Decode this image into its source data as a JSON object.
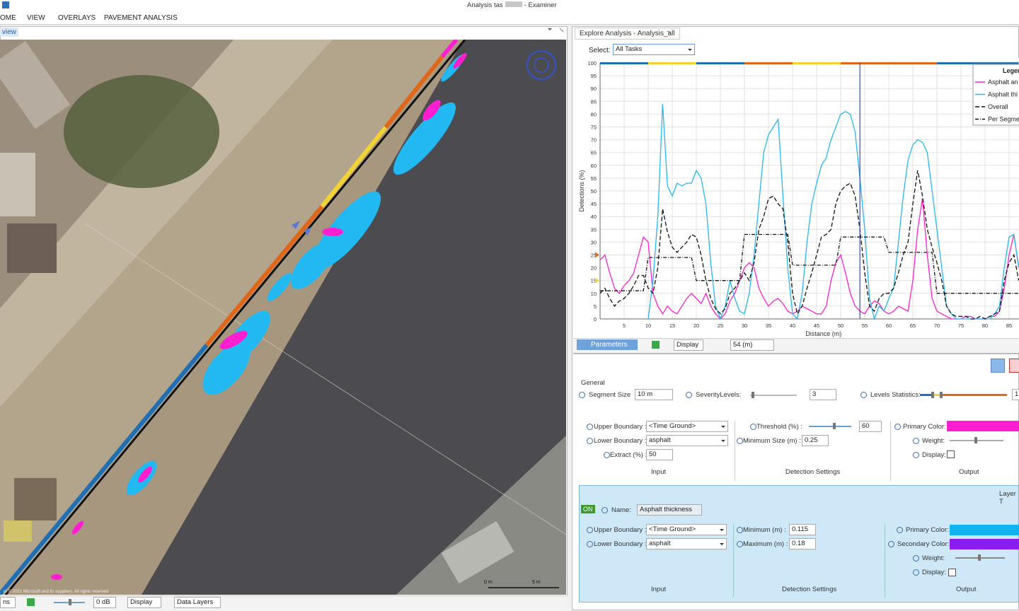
{
  "app": {
    "title_left": "Analysis tas",
    "title_right": "- Examiner",
    "menu": [
      "OME",
      "VIEW",
      "OVERLAYS",
      "PAVEMENT ANALYSIS"
    ]
  },
  "map_pane": {
    "tab": "view",
    "copyright": "nt © 2021 Microsoft and its suppliers. All rights reserved",
    "scale_start": "0 m",
    "scale_end": "5 m",
    "status": {
      "left": "ns",
      "gain": "0 dB",
      "display": "Display",
      "data_layers": "Data Layers"
    }
  },
  "analysis_pane": {
    "tab": "Explore Analysis - Analysis_all",
    "select_label": "Select:",
    "select_value": "All Tasks",
    "toolbar": {
      "parameters": "Parameters",
      "display": "Display",
      "position": "54 (m)"
    },
    "general": {
      "title": "General",
      "segment_size_label": "Segment Size",
      "segment_size": "10 m",
      "severity_label": "SeverityLevels:",
      "severity": "3",
      "levels_label": "Levels Statistics:",
      "levels_value": "1"
    },
    "layer1": {
      "upper_label": "Upper Boundary :",
      "upper": "<Time Ground>",
      "lower_label": "Lower Boundary :",
      "lower": "asphalt",
      "extract_label": "Extract (%) :",
      "extract": "50",
      "input": "Input",
      "threshold_label": "Threshold (%) :",
      "threshold": "60",
      "min_size_label": "Minimum Size (m) :",
      "min_size": "0.25",
      "detection": "Detection Settings",
      "primary_label": "Primary Color:",
      "weight_label": "Weight:",
      "display_label": "Display:",
      "output": "Output"
    },
    "layer2": {
      "header": "Layer T",
      "on": "ON",
      "name_label": "Name:",
      "name": "Asphalt thickness",
      "upper_label": "Upper Boundary :",
      "upper": "<Time Ground>",
      "lower_label": "Lower Boundary :",
      "lower": "asphalt",
      "input": "Input",
      "min_label": "Minimum (m) :",
      "min": "0.115",
      "max_label": "Maximum (m) :",
      "max": "0.18",
      "detection": "Detection Settings",
      "primary_label": "Primary Color:",
      "secondary_label": "Secondary Color:",
      "weight_label": "Weight:",
      "display_label": "Display:",
      "output": "Output"
    }
  },
  "chart_data": {
    "type": "line",
    "y_label": "Detections (%)",
    "x_label": "Distance (m)",
    "legend_title": "Legen",
    "legend_position": "upper right",
    "grid": true,
    "xlim": [
      0,
      87
    ],
    "ylim": [
      0,
      100
    ],
    "xticks": [
      5,
      10,
      15,
      20,
      25,
      30,
      35,
      40,
      45,
      50,
      55,
      60,
      65,
      70,
      75,
      80,
      85
    ],
    "yticks": [
      0,
      5,
      10,
      15,
      20,
      25,
      30,
      35,
      40,
      45,
      50,
      55,
      60,
      65,
      70,
      75,
      80,
      85,
      90,
      95,
      100
    ],
    "cursor_x": 54,
    "cursor_color": "#2f4fc4",
    "segment_bounds": [
      0,
      10,
      20,
      30,
      40,
      50,
      70,
      87
    ],
    "segment_colors": [
      "#1f6fb5",
      "#f2d335",
      "#1f6fb5",
      "#e0661a",
      "#f2d335",
      "#e0661a",
      "#1f6fb5"
    ],
    "threshold_markers": [
      {
        "value": 25,
        "color": "#e0661a"
      },
      {
        "value": 15,
        "color": "#f2d335"
      }
    ],
    "x": [
      0,
      1,
      2,
      3,
      4,
      5,
      6,
      7,
      8,
      9,
      10,
      11,
      12,
      13,
      14,
      15,
      16,
      17,
      18,
      19,
      20,
      21,
      22,
      23,
      24,
      25,
      26,
      27,
      28,
      29,
      30,
      31,
      32,
      33,
      34,
      35,
      36,
      37,
      38,
      39,
      40,
      41,
      42,
      43,
      44,
      45,
      46,
      47,
      48,
      49,
      50,
      51,
      52,
      53,
      54,
      55,
      56,
      57,
      58,
      59,
      60,
      61,
      62,
      63,
      64,
      65,
      66,
      67,
      68,
      69,
      70,
      71,
      72,
      73,
      74,
      75,
      76,
      77,
      78,
      79,
      80,
      81,
      82,
      83,
      84,
      85,
      86,
      87
    ],
    "series": [
      {
        "name": "Asphalt an",
        "color": "#ff1fd0",
        "dash": "none",
        "values": [
          23,
          25,
          18,
          12,
          10,
          13,
          15,
          18,
          25,
          32,
          30,
          10,
          5,
          2,
          5,
          3,
          2,
          5,
          8,
          10,
          8,
          6,
          10,
          5,
          2,
          0,
          2,
          7,
          10,
          15,
          20,
          22,
          20,
          12,
          8,
          5,
          7,
          8,
          6,
          3,
          2,
          3,
          5,
          4,
          3,
          2,
          2,
          5,
          15,
          22,
          25,
          18,
          10,
          5,
          3,
          2,
          5,
          7,
          6,
          3,
          2,
          3,
          5,
          4,
          3,
          15,
          35,
          47,
          25,
          8,
          3,
          2,
          1,
          0,
          0,
          0,
          1,
          1,
          0,
          0,
          0,
          1,
          1,
          3,
          12,
          25,
          33,
          20
        ]
      },
      {
        "name": "Asphalt thi",
        "color": "#27b7f0",
        "dash": "none",
        "values": [
          null,
          null,
          null,
          null,
          null,
          null,
          null,
          null,
          null,
          null,
          0,
          15,
          40,
          84,
          52,
          48,
          53,
          52,
          53,
          53,
          58,
          55,
          45,
          22,
          5,
          0,
          5,
          15,
          8,
          3,
          2,
          10,
          25,
          45,
          65,
          72,
          75,
          78,
          48,
          20,
          2,
          0,
          10,
          30,
          45,
          53,
          60,
          63,
          70,
          75,
          80,
          81,
          80,
          73,
          55,
          35,
          8,
          0,
          5,
          3,
          8,
          12,
          30,
          48,
          62,
          68,
          70,
          69,
          65,
          50,
          35,
          20,
          5,
          2,
          0,
          0,
          0,
          0,
          0,
          0,
          0,
          0,
          2,
          5,
          20,
          32,
          33,
          20
        ]
      },
      {
        "name": "Overall",
        "color": "#111111",
        "dash": "6,3",
        "values": [
          10,
          12,
          8,
          5,
          7,
          8,
          10,
          13,
          17,
          17,
          12,
          10,
          20,
          43,
          34,
          28,
          26,
          28,
          30,
          33,
          32,
          25,
          15,
          8,
          4,
          2,
          4,
          10,
          12,
          15,
          18,
          15,
          22,
          35,
          40,
          47,
          48,
          45,
          43,
          30,
          10,
          2,
          5,
          12,
          18,
          25,
          32,
          33,
          35,
          45,
          50,
          52,
          53,
          48,
          35,
          18,
          5,
          3,
          8,
          10,
          10,
          12,
          18,
          25,
          30,
          45,
          58,
          48,
          35,
          28,
          22,
          15,
          5,
          2,
          1,
          1,
          1,
          0,
          0,
          1,
          0,
          1,
          2,
          3,
          15,
          22,
          25,
          15
        ]
      },
      {
        "name": "Per Segme",
        "color": "#111111",
        "dash": "5,2,1,2",
        "values": [
          11,
          11,
          11,
          11,
          11,
          11,
          11,
          11,
          11,
          11,
          24,
          24,
          24,
          24,
          24,
          24,
          24,
          24,
          24,
          24,
          15,
          15,
          15,
          15,
          15,
          15,
          15,
          15,
          15,
          15,
          33,
          33,
          33,
          33,
          33,
          33,
          33,
          33,
          33,
          33,
          21,
          21,
          21,
          21,
          21,
          21,
          21,
          21,
          21,
          21,
          32,
          32,
          32,
          32,
          32,
          32,
          32,
          32,
          32,
          32,
          26,
          26,
          26,
          26,
          26,
          26,
          26,
          26,
          26,
          26,
          10,
          10,
          10,
          10,
          10,
          10,
          10,
          10,
          10,
          10,
          10,
          10,
          10,
          10,
          10,
          10,
          10,
          10
        ]
      }
    ]
  }
}
